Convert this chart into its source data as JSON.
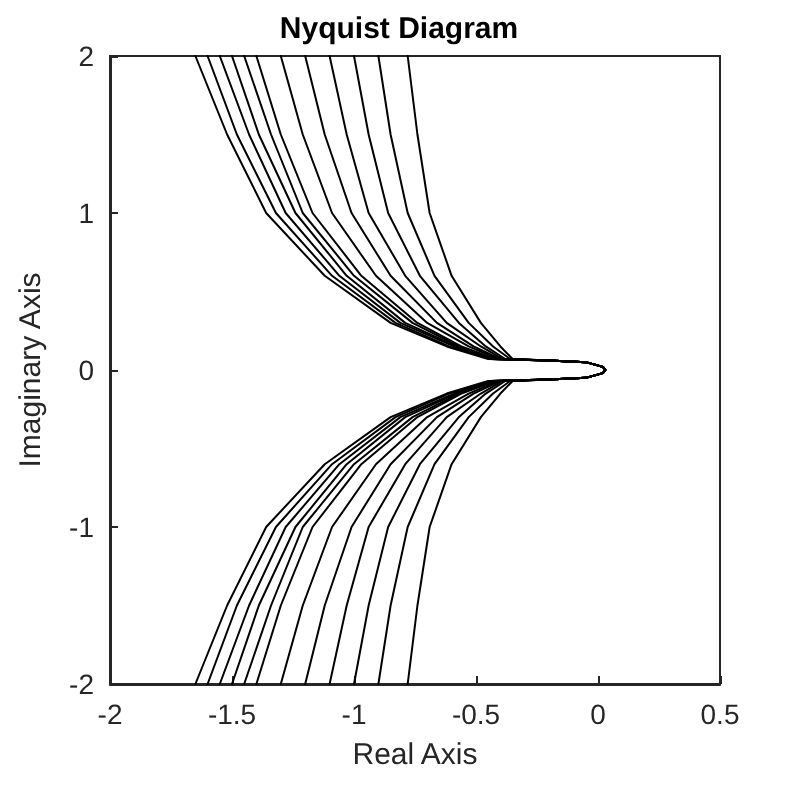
{
  "chart_data": {
    "type": "line",
    "title": "Nyquist Diagram",
    "xlabel": "Real Axis",
    "ylabel": "Imaginary Axis",
    "xlim": [
      -2,
      0.5
    ],
    "xticks": [
      -2,
      -1.5,
      -1,
      -0.5,
      0,
      0.5
    ],
    "ylim": [
      -2,
      2
    ],
    "yticks": [
      -2,
      -1,
      0,
      1,
      2
    ],
    "grid": false,
    "marker": "none",
    "line_style": "solid",
    "series": [
      {
        "color": "#000000",
        "x": [
          -1.65,
          -1.52,
          -1.36,
          -1.12,
          -0.85,
          -0.62,
          -0.45,
          -0.2,
          -0.05,
          0.02,
          0.03,
          0.02,
          -0.05,
          -0.2,
          -0.45,
          -0.62,
          -0.85,
          -1.12,
          -1.36,
          -1.52,
          -1.65
        ],
        "values": [
          2,
          1.5,
          1,
          0.6,
          0.3,
          0.15,
          0.07,
          0.06,
          0.05,
          0.02,
          0,
          -0.02,
          -0.05,
          -0.06,
          -0.07,
          -0.15,
          -0.3,
          -0.6,
          -1,
          -1.5,
          -2
        ]
      },
      {
        "color": "#000000",
        "x": [
          -1.6,
          -1.48,
          -1.32,
          -1.09,
          -0.83,
          -0.61,
          -0.44,
          -0.2,
          -0.05,
          0.02,
          0.03,
          0.02,
          -0.05,
          -0.2,
          -0.44,
          -0.61,
          -0.83,
          -1.09,
          -1.32,
          -1.48,
          -1.6
        ],
        "values": [
          2,
          1.5,
          1,
          0.6,
          0.3,
          0.15,
          0.07,
          0.06,
          0.05,
          0.02,
          0,
          -0.02,
          -0.05,
          -0.06,
          -0.07,
          -0.15,
          -0.3,
          -0.6,
          -1,
          -1.5,
          -2
        ]
      },
      {
        "color": "#000000",
        "x": [
          -1.55,
          -1.43,
          -1.28,
          -1.06,
          -0.81,
          -0.59,
          -0.44,
          -0.2,
          -0.05,
          0.02,
          0.03,
          0.02,
          -0.05,
          -0.2,
          -0.44,
          -0.59,
          -0.81,
          -1.06,
          -1.28,
          -1.43,
          -1.55
        ],
        "values": [
          2,
          1.5,
          1,
          0.6,
          0.3,
          0.15,
          0.07,
          0.06,
          0.05,
          0.02,
          0,
          -0.02,
          -0.05,
          -0.06,
          -0.07,
          -0.15,
          -0.3,
          -0.6,
          -1,
          -1.5,
          -2
        ]
      },
      {
        "color": "#000000",
        "x": [
          -1.5,
          -1.39,
          -1.24,
          -1.03,
          -0.79,
          -0.58,
          -0.43,
          -0.2,
          -0.05,
          0.02,
          0.03,
          0.02,
          -0.05,
          -0.2,
          -0.43,
          -0.58,
          -0.79,
          -1.03,
          -1.24,
          -1.39,
          -1.5
        ],
        "values": [
          2,
          1.5,
          1,
          0.6,
          0.3,
          0.15,
          0.07,
          0.06,
          0.05,
          0.02,
          0,
          -0.02,
          -0.05,
          -0.06,
          -0.07,
          -0.15,
          -0.3,
          -0.6,
          -1,
          -1.5,
          -2
        ]
      },
      {
        "color": "#000000",
        "x": [
          -1.45,
          -1.34,
          -1.21,
          -1.0,
          -0.76,
          -0.57,
          -0.43,
          -0.2,
          -0.05,
          0.02,
          0.03,
          0.02,
          -0.05,
          -0.2,
          -0.43,
          -0.57,
          -0.76,
          -1.0,
          -1.21,
          -1.34,
          -1.45
        ],
        "values": [
          2,
          1.5,
          1,
          0.6,
          0.3,
          0.15,
          0.07,
          0.06,
          0.05,
          0.02,
          0,
          -0.02,
          -0.05,
          -0.06,
          -0.07,
          -0.15,
          -0.3,
          -0.6,
          -1,
          -1.5,
          -2
        ]
      },
      {
        "color": "#000000",
        "x": [
          -1.4,
          -1.3,
          -1.17,
          -0.97,
          -0.74,
          -0.56,
          -0.42,
          -0.2,
          -0.05,
          0.02,
          0.03,
          0.02,
          -0.05,
          -0.2,
          -0.42,
          -0.56,
          -0.74,
          -0.97,
          -1.17,
          -1.3,
          -1.4
        ],
        "values": [
          2,
          1.5,
          1,
          0.6,
          0.3,
          0.15,
          0.07,
          0.06,
          0.05,
          0.02,
          0,
          -0.02,
          -0.05,
          -0.06,
          -0.07,
          -0.15,
          -0.3,
          -0.6,
          -1,
          -1.5,
          -2
        ]
      },
      {
        "color": "#000000",
        "x": [
          -1.3,
          -1.21,
          -1.09,
          -0.91,
          -0.7,
          -0.53,
          -0.41,
          -0.2,
          -0.05,
          0.02,
          0.03,
          0.02,
          -0.05,
          -0.2,
          -0.41,
          -0.53,
          -0.7,
          -0.91,
          -1.09,
          -1.21,
          -1.3
        ],
        "values": [
          2,
          1.5,
          1,
          0.6,
          0.3,
          0.15,
          0.07,
          0.06,
          0.05,
          0.02,
          0,
          -0.02,
          -0.05,
          -0.06,
          -0.07,
          -0.15,
          -0.3,
          -0.6,
          -1,
          -1.5,
          -2
        ]
      },
      {
        "color": "#000000",
        "x": [
          -1.2,
          -1.12,
          -1.01,
          -0.85,
          -0.66,
          -0.51,
          -0.4,
          -0.2,
          -0.05,
          0.02,
          0.03,
          0.02,
          -0.05,
          -0.2,
          -0.4,
          -0.51,
          -0.66,
          -0.85,
          -1.01,
          -1.12,
          -1.2
        ],
        "values": [
          2,
          1.5,
          1,
          0.6,
          0.3,
          0.15,
          0.07,
          0.06,
          0.05,
          0.02,
          0,
          -0.02,
          -0.05,
          -0.06,
          -0.07,
          -0.15,
          -0.3,
          -0.6,
          -1,
          -1.5,
          -2
        ]
      },
      {
        "color": "#000000",
        "x": [
          -1.1,
          -1.03,
          -0.94,
          -0.79,
          -0.62,
          -0.48,
          -0.39,
          -0.2,
          -0.05,
          0.02,
          0.03,
          0.02,
          -0.05,
          -0.2,
          -0.39,
          -0.48,
          -0.62,
          -0.79,
          -0.94,
          -1.03,
          -1.1
        ],
        "values": [
          2,
          1.5,
          1,
          0.6,
          0.3,
          0.15,
          0.07,
          0.06,
          0.05,
          0.02,
          0,
          -0.02,
          -0.05,
          -0.06,
          -0.07,
          -0.15,
          -0.3,
          -0.6,
          -1,
          -1.5,
          -2
        ]
      },
      {
        "color": "#000000",
        "x": [
          -1.0,
          -0.94,
          -0.86,
          -0.73,
          -0.57,
          -0.46,
          -0.38,
          -0.2,
          -0.05,
          0.02,
          0.03,
          0.02,
          -0.05,
          -0.2,
          -0.38,
          -0.46,
          -0.57,
          -0.73,
          -0.86,
          -0.94,
          -1.0
        ],
        "values": [
          2,
          1.5,
          1,
          0.6,
          0.3,
          0.15,
          0.07,
          0.06,
          0.05,
          0.02,
          0,
          -0.02,
          -0.05,
          -0.06,
          -0.07,
          -0.15,
          -0.3,
          -0.6,
          -1,
          -1.5,
          -2
        ]
      },
      {
        "color": "#000000",
        "x": [
          -0.9,
          -0.85,
          -0.78,
          -0.67,
          -0.53,
          -0.43,
          -0.36,
          -0.2,
          -0.05,
          0.02,
          0.03,
          0.02,
          -0.05,
          -0.2,
          -0.36,
          -0.43,
          -0.53,
          -0.67,
          -0.78,
          -0.85,
          -0.9
        ],
        "values": [
          2,
          1.5,
          1,
          0.6,
          0.3,
          0.15,
          0.07,
          0.06,
          0.05,
          0.02,
          0,
          -0.02,
          -0.05,
          -0.06,
          -0.07,
          -0.15,
          -0.3,
          -0.6,
          -1,
          -1.5,
          -2
        ]
      },
      {
        "color": "#000000",
        "x": [
          -0.78,
          -0.74,
          -0.69,
          -0.6,
          -0.48,
          -0.4,
          -0.35,
          -0.2,
          -0.05,
          0.02,
          0.03,
          0.02,
          -0.05,
          -0.2,
          -0.35,
          -0.4,
          -0.48,
          -0.6,
          -0.69,
          -0.74,
          -0.78
        ],
        "values": [
          2,
          1.5,
          1,
          0.6,
          0.3,
          0.15,
          0.07,
          0.06,
          0.05,
          0.02,
          0,
          -0.02,
          -0.05,
          -0.06,
          -0.07,
          -0.15,
          -0.3,
          -0.6,
          -1,
          -1.5,
          -2
        ]
      }
    ]
  }
}
